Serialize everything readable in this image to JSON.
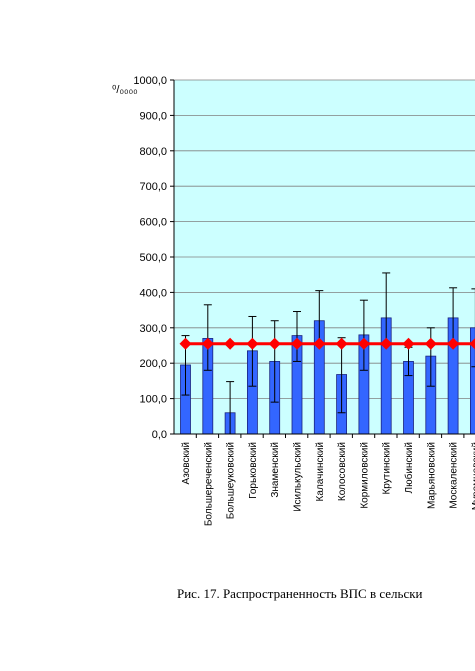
{
  "chart_data": {
    "type": "bar",
    "ylabel": "⁰/₀₀₀₀",
    "ylim": [
      0,
      1000
    ],
    "yticks": [
      "0,0",
      "100,0",
      "200,0",
      "300,0",
      "400,0",
      "500,0",
      "600,0",
      "700,0",
      "800,0",
      "900,0",
      "1000,0"
    ],
    "grid": true,
    "categories": [
      "Азовский",
      "Большереченский",
      "Большеуковский",
      "Горьковский",
      "Знаменский",
      "Исилькульский",
      "Калачинский",
      "Колосовский",
      "Кормиловский",
      "Крутинский",
      "Любинский",
      "Марьяновский",
      "Москаленский",
      "Муромцевский"
    ],
    "series": [
      {
        "type": "bar",
        "values": [
          195,
          270,
          60,
          235,
          205,
          278,
          320,
          168,
          280,
          328,
          205,
          220,
          328,
          300
        ],
        "error_low": [
          110,
          180,
          0,
          135,
          90,
          205,
          255,
          60,
          180,
          255,
          165,
          135,
          255,
          190
        ],
        "error_high": [
          278,
          365,
          148,
          332,
          320,
          346,
          405,
          272,
          378,
          455,
          245,
          300,
          413,
          410
        ]
      },
      {
        "type": "line",
        "values": [
          255,
          255,
          255,
          255,
          255,
          255,
          255,
          255,
          255,
          255,
          255,
          255,
          255,
          255
        ]
      }
    ],
    "colors": {
      "bar": "#3366ff",
      "bar_edge": "#1a237e",
      "line": "#ff0000",
      "plot_bg": "#ccffff",
      "error": "#000000"
    }
  },
  "caption": "Рис. 17. Распространенность ВПС в сельски"
}
